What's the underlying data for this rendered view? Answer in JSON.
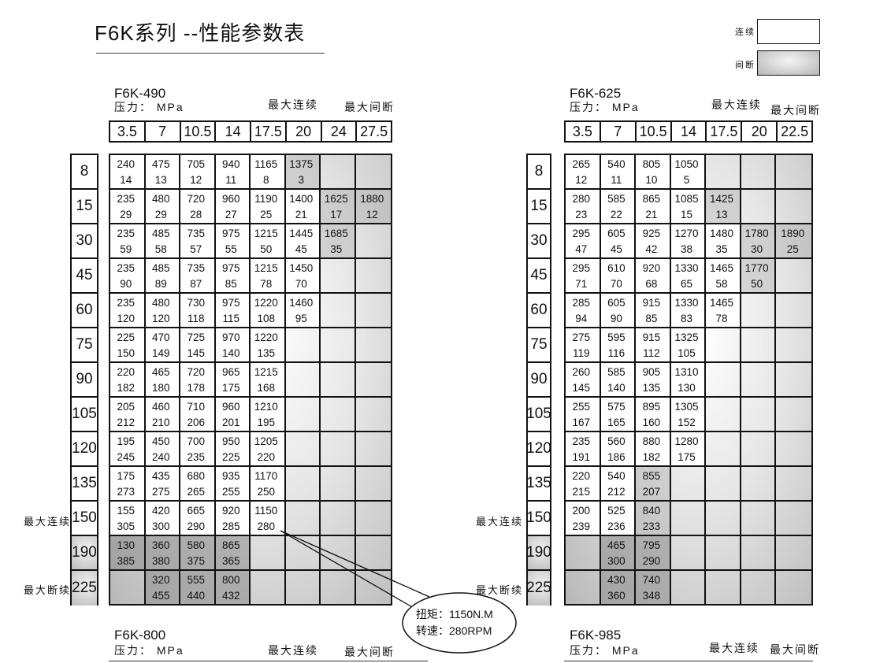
{
  "title": "F6K系列 --性能参数表",
  "legend": {
    "continuous": "连续",
    "intermittent": "间断",
    "continuous_color": "#ffffff",
    "intermittent_color": "#bdbdbd"
  },
  "labels": {
    "pressure": "压力： MPa",
    "max_continuous": "最大连续",
    "max_intermittent": "最大间断",
    "max_cont_side": "最大连续",
    "max_inter_side": "最大断续"
  },
  "callout": {
    "torque": "扭矩：1150N.M",
    "speed": "转速：280RPM"
  },
  "tables": [
    {
      "model": "F6K-490",
      "pressures": [
        "3.5",
        "7",
        "10.5",
        "14",
        "17.5",
        "20",
        "24",
        "27.5"
      ],
      "rows": [
        {
          "label": "8",
          "cells": [
            [
              "240",
              "14"
            ],
            [
              "475",
              "13"
            ],
            [
              "705",
              "12"
            ],
            [
              "940",
              "11"
            ],
            [
              "1165",
              "8"
            ],
            [
              "1375",
              "3"
            ],
            null,
            null
          ],
          "gray": [
            5
          ]
        },
        {
          "label": "15",
          "cells": [
            [
              "235",
              "29"
            ],
            [
              "480",
              "29"
            ],
            [
              "720",
              "28"
            ],
            [
              "960",
              "27"
            ],
            [
              "1190",
              "25"
            ],
            [
              "1400",
              "21"
            ],
            [
              "1625",
              "17"
            ],
            [
              "1880",
              "12"
            ]
          ],
          "gray": [
            6,
            7
          ]
        },
        {
          "label": "30",
          "cells": [
            [
              "235",
              "59"
            ],
            [
              "485",
              "58"
            ],
            [
              "735",
              "57"
            ],
            [
              "975",
              "55"
            ],
            [
              "1215",
              "50"
            ],
            [
              "1445",
              "45"
            ],
            [
              "1685",
              "35"
            ],
            null
          ],
          "gray": [
            6
          ]
        },
        {
          "label": "45",
          "cells": [
            [
              "235",
              "90"
            ],
            [
              "485",
              "89"
            ],
            [
              "735",
              "87"
            ],
            [
              "975",
              "85"
            ],
            [
              "1215",
              "78"
            ],
            [
              "1450",
              "70"
            ],
            null,
            null
          ],
          "gray": []
        },
        {
          "label": "60",
          "cells": [
            [
              "235",
              "120"
            ],
            [
              "480",
              "120"
            ],
            [
              "730",
              "118"
            ],
            [
              "975",
              "115"
            ],
            [
              "1220",
              "108"
            ],
            [
              "1460",
              "95"
            ],
            null,
            null
          ],
          "gray": []
        },
        {
          "label": "75",
          "cells": [
            [
              "225",
              "150"
            ],
            [
              "470",
              "149"
            ],
            [
              "725",
              "145"
            ],
            [
              "970",
              "140"
            ],
            [
              "1220",
              "135"
            ],
            null,
            null,
            null
          ],
          "gray": []
        },
        {
          "label": "90",
          "cells": [
            [
              "220",
              "182"
            ],
            [
              "465",
              "180"
            ],
            [
              "720",
              "178"
            ],
            [
              "965",
              "175"
            ],
            [
              "1215",
              "168"
            ],
            null,
            null,
            null
          ],
          "gray": []
        },
        {
          "label": "105",
          "cells": [
            [
              "205",
              "212"
            ],
            [
              "460",
              "210"
            ],
            [
              "710",
              "206"
            ],
            [
              "960",
              "201"
            ],
            [
              "1210",
              "195"
            ],
            null,
            null,
            null
          ],
          "gray": []
        },
        {
          "label": "120",
          "cells": [
            [
              "195",
              "245"
            ],
            [
              "450",
              "240"
            ],
            [
              "700",
              "235"
            ],
            [
              "950",
              "225"
            ],
            [
              "1205",
              "220"
            ],
            null,
            null,
            null
          ],
          "gray": []
        },
        {
          "label": "135",
          "cells": [
            [
              "175",
              "273"
            ],
            [
              "435",
              "275"
            ],
            [
              "680",
              "265"
            ],
            [
              "935",
              "255"
            ],
            [
              "1170",
              "250"
            ],
            null,
            null,
            null
          ],
          "gray": []
        },
        {
          "label": "150",
          "cells": [
            [
              "155",
              "305"
            ],
            [
              "420",
              "300"
            ],
            [
              "665",
              "290"
            ],
            [
              "920",
              "285"
            ],
            [
              "1150",
              "280"
            ],
            null,
            null,
            null
          ],
          "gray": []
        },
        {
          "label": "190",
          "cells": [
            [
              "130",
              "385"
            ],
            [
              "360",
              "380"
            ],
            [
              "580",
              "375"
            ],
            [
              "865",
              "365"
            ],
            null,
            null,
            null,
            null
          ],
          "gray": [
            0,
            1,
            2,
            3
          ]
        },
        {
          "label": "225",
          "cells": [
            null,
            [
              "320",
              "455"
            ],
            [
              "555",
              "440"
            ],
            [
              "800",
              "432"
            ],
            null,
            null,
            null,
            null
          ],
          "gray": [
            1,
            2,
            3
          ]
        }
      ]
    },
    {
      "model": "F6K-625",
      "pressures": [
        "3.5",
        "7",
        "10.5",
        "14",
        "17.5",
        "20",
        "22.5"
      ],
      "rows": [
        {
          "label": "8",
          "cells": [
            [
              "265",
              "12"
            ],
            [
              "540",
              "11"
            ],
            [
              "805",
              "10"
            ],
            [
              "1050",
              "5"
            ],
            null,
            null,
            null
          ],
          "gray": []
        },
        {
          "label": "15",
          "cells": [
            [
              "280",
              "23"
            ],
            [
              "585",
              "22"
            ],
            [
              "865",
              "21"
            ],
            [
              "1085",
              "15"
            ],
            [
              "1425",
              "13"
            ],
            null,
            null
          ],
          "gray": [
            4
          ]
        },
        {
          "label": "30",
          "cells": [
            [
              "295",
              "47"
            ],
            [
              "605",
              "45"
            ],
            [
              "925",
              "42"
            ],
            [
              "1270",
              "38"
            ],
            [
              "1480",
              "35"
            ],
            [
              "1780",
              "30"
            ],
            [
              "1890",
              "25"
            ]
          ],
          "gray": [
            5,
            6
          ]
        },
        {
          "label": "45",
          "cells": [
            [
              "295",
              "71"
            ],
            [
              "610",
              "70"
            ],
            [
              "920",
              "68"
            ],
            [
              "1330",
              "65"
            ],
            [
              "1465",
              "58"
            ],
            [
              "1770",
              "50"
            ],
            null
          ],
          "gray": [
            5
          ]
        },
        {
          "label": "60",
          "cells": [
            [
              "285",
              "94"
            ],
            [
              "605",
              "90"
            ],
            [
              "915",
              "85"
            ],
            [
              "1330",
              "83"
            ],
            [
              "1465",
              "78"
            ],
            null,
            null
          ],
          "gray": []
        },
        {
          "label": "75",
          "cells": [
            [
              "275",
              "119"
            ],
            [
              "595",
              "116"
            ],
            [
              "915",
              "112"
            ],
            [
              "1325",
              "105"
            ],
            null,
            null,
            null
          ],
          "gray": []
        },
        {
          "label": "90",
          "cells": [
            [
              "260",
              "145"
            ],
            [
              "585",
              "140"
            ],
            [
              "905",
              "135"
            ],
            [
              "1310",
              "130"
            ],
            null,
            null,
            null
          ],
          "gray": []
        },
        {
          "label": "105",
          "cells": [
            [
              "255",
              "167"
            ],
            [
              "575",
              "165"
            ],
            [
              "895",
              "160"
            ],
            [
              "1305",
              "152"
            ],
            null,
            null,
            null
          ],
          "gray": []
        },
        {
          "label": "120",
          "cells": [
            [
              "235",
              "191"
            ],
            [
              "560",
              "186"
            ],
            [
              "880",
              "182"
            ],
            [
              "1280",
              "175"
            ],
            null,
            null,
            null
          ],
          "gray": []
        },
        {
          "label": "135",
          "cells": [
            [
              "220",
              "215"
            ],
            [
              "540",
              "212"
            ],
            [
              "855",
              "207"
            ],
            null,
            null,
            null,
            null
          ],
          "gray": [
            2
          ]
        },
        {
          "label": "150",
          "cells": [
            [
              "200",
              "239"
            ],
            [
              "525",
              "236"
            ],
            [
              "840",
              "233"
            ],
            null,
            null,
            null,
            null
          ],
          "gray": [
            2
          ]
        },
        {
          "label": "190",
          "cells": [
            null,
            [
              "465",
              "300"
            ],
            [
              "795",
              "290"
            ],
            null,
            null,
            null,
            null
          ],
          "gray": [
            1,
            2
          ]
        },
        {
          "label": "225",
          "cells": [
            null,
            [
              "430",
              "360"
            ],
            [
              "740",
              "348"
            ],
            null,
            null,
            null,
            null
          ],
          "gray": [
            1,
            2
          ]
        }
      ]
    },
    {
      "model": "F6K-800"
    },
    {
      "model": "F6K-985"
    }
  ]
}
